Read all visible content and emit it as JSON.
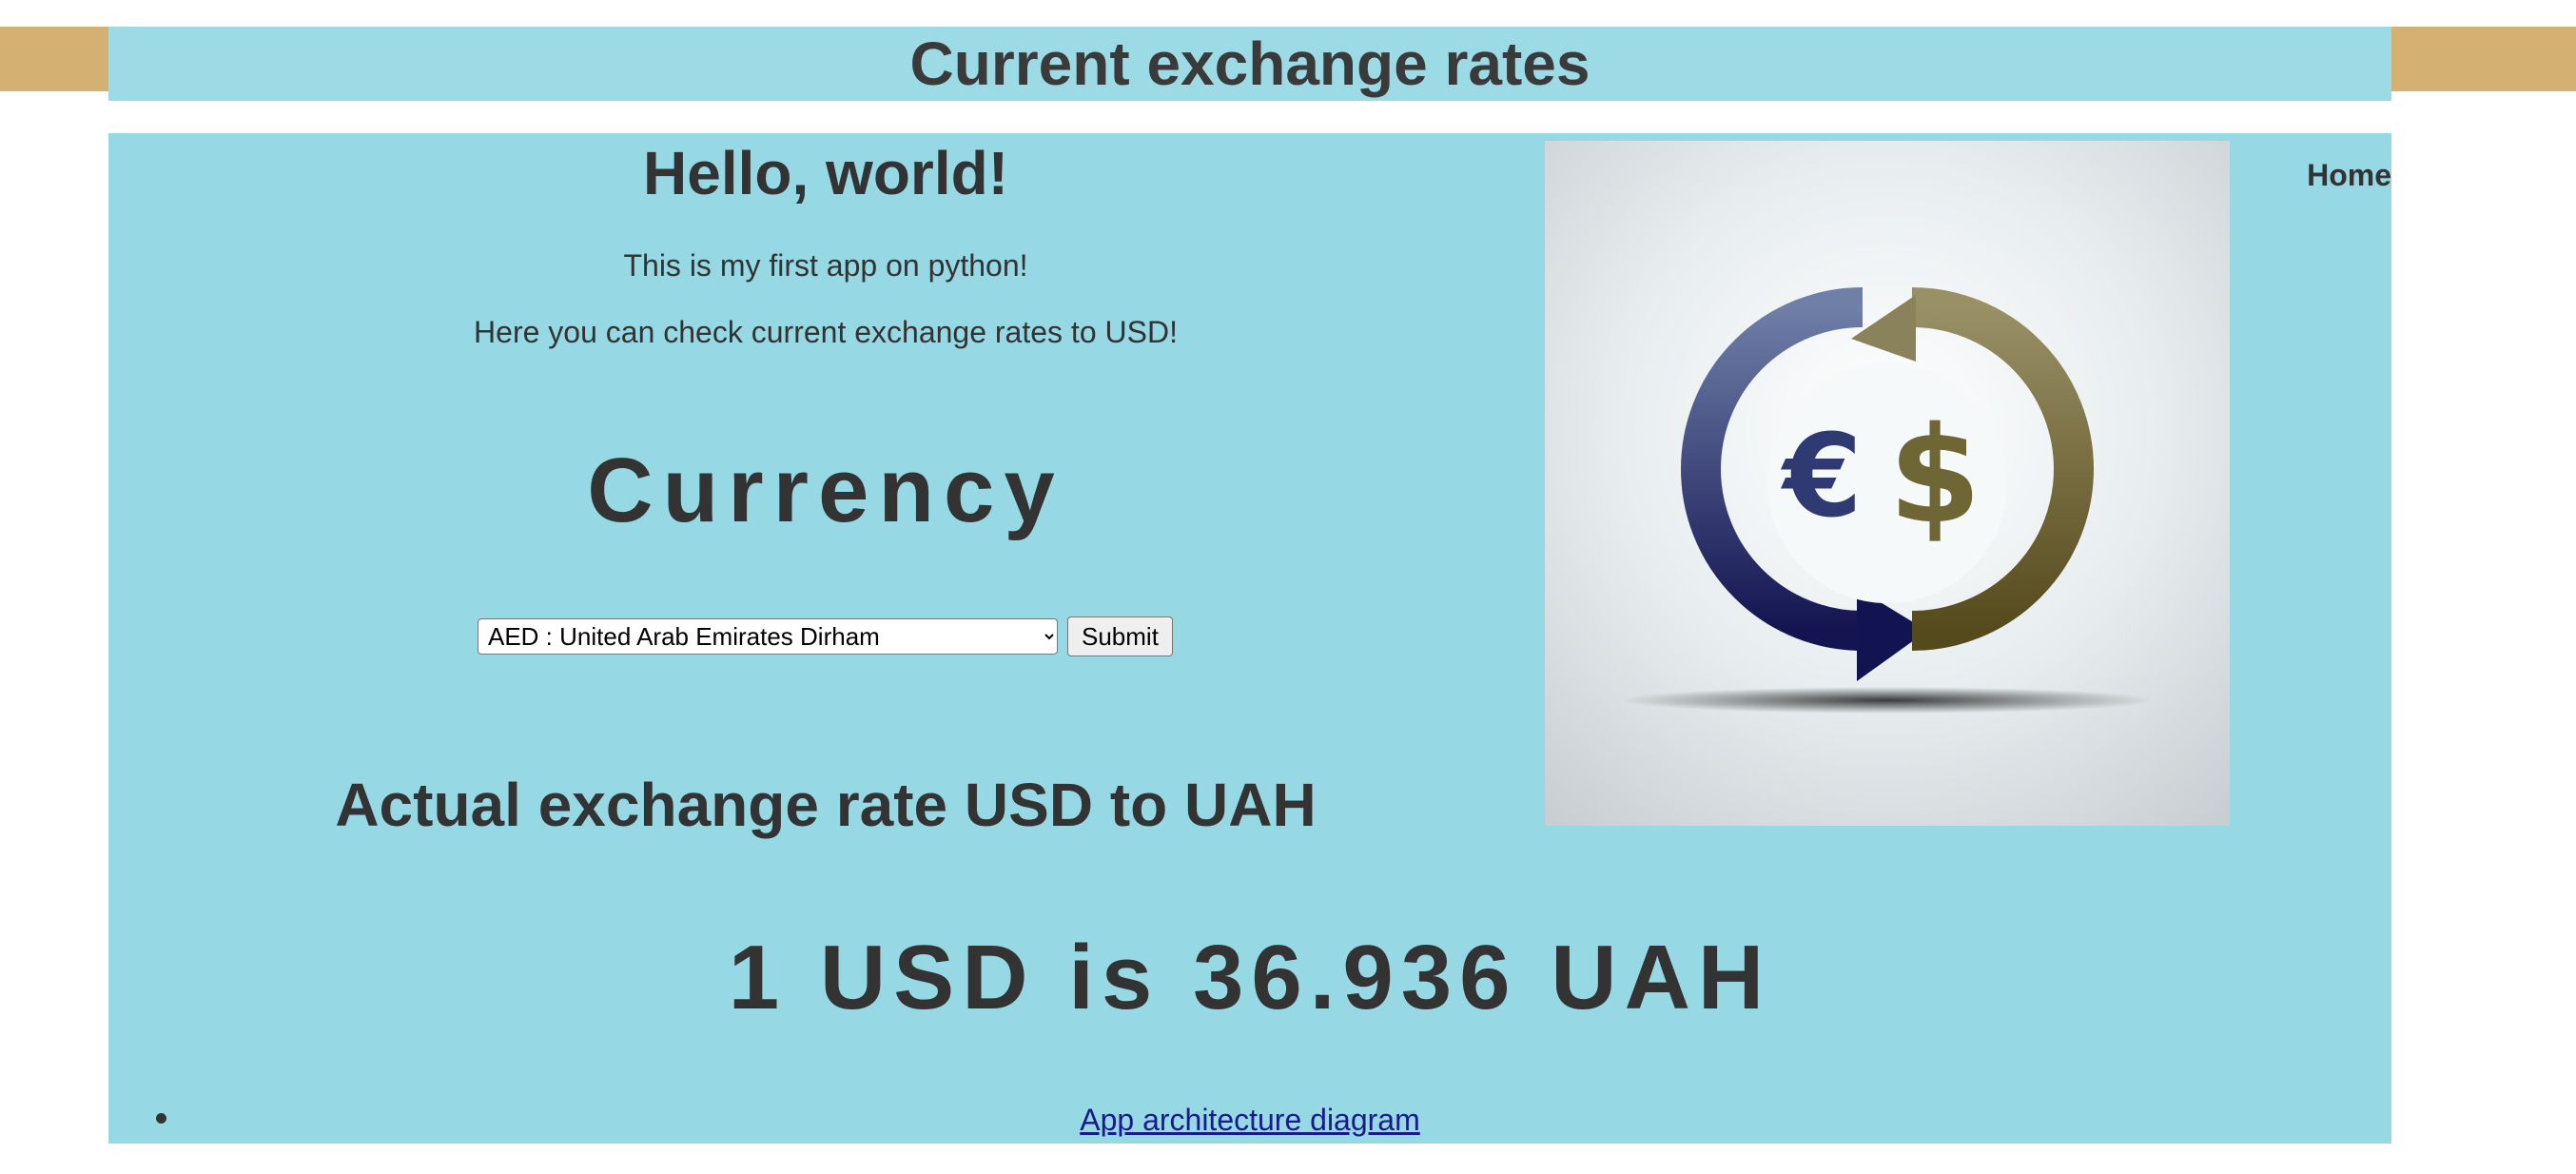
{
  "header": {
    "title": "Current exchange rates"
  },
  "nav": {
    "home_label": "Home"
  },
  "intro": {
    "heading": "Hello, world!",
    "line1": "This is my first app on python!",
    "line2": "Here you can check current exchange rates to USD!"
  },
  "currency_form": {
    "heading": "Currency",
    "selected_option": "AED : United Arab Emirates Dirham",
    "submit_label": "Submit"
  },
  "result": {
    "heading": "Actual exchange rate USD to UAH",
    "value_text": "1 USD is 36.936 UAH"
  },
  "links": [
    {
      "label": "App architecture diagram"
    }
  ],
  "logo": {
    "icon": "currency-exchange-icon",
    "glyph_euro": "€",
    "glyph_dollar": "$"
  },
  "colors": {
    "header_band": "#9cdbe6",
    "panel": "#96d8e4",
    "gold_bar": "#d4b072",
    "text": "#333333",
    "link": "#1a1a8e"
  }
}
